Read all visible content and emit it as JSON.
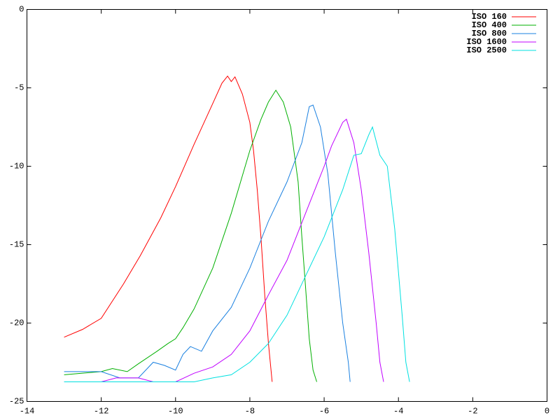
{
  "chart_data": {
    "type": "line",
    "xlim": [
      -14,
      0
    ],
    "xticks": [
      -14,
      -12,
      -10,
      -8,
      -6,
      -4,
      -2,
      0
    ],
    "ylim": [
      -25,
      0
    ],
    "yticks": [
      -25,
      -20,
      -15,
      -10,
      -5,
      0
    ],
    "grid": false,
    "legend": "top-right",
    "series": [
      {
        "name": "ISO 160",
        "color": "#ff0000",
        "x": [
          -13,
          -12.5,
          -12,
          -11.4,
          -10.95,
          -10.4,
          -10,
          -9.5,
          -9,
          -8.75,
          -8.6,
          -8.5,
          -8.4,
          -8.2,
          -8,
          -7.9,
          -7.8,
          -7.7,
          -7.6,
          -7.5,
          -7.4
        ],
        "values": [
          -20.9,
          -20.4,
          -19.7,
          -17.5,
          -15.7,
          -13.3,
          -11.3,
          -8.6,
          -6.0,
          -4.7,
          -4.25,
          -4.6,
          -4.3,
          -5.4,
          -7.2,
          -9.0,
          -11.5,
          -14.6,
          -18.2,
          -21.3,
          -23.75
        ]
      },
      {
        "name": "ISO 400",
        "color": "#00b000",
        "x": [
          -13,
          -12,
          -11.7,
          -11.3,
          -11,
          -10.5,
          -10.2,
          -10,
          -9.8,
          -9.5,
          -9,
          -8.5,
          -8,
          -7.7,
          -7.5,
          -7.3,
          -7.1,
          -6.9,
          -6.7,
          -6.6,
          -6.5,
          -6.4,
          -6.3,
          -6.2
        ],
        "values": [
          -23.3,
          -23.1,
          -22.9,
          -23.1,
          -22.6,
          -21.8,
          -21.3,
          -21.0,
          -20.3,
          -19.1,
          -16.5,
          -13.0,
          -9.0,
          -7.0,
          -5.9,
          -5.15,
          -5.9,
          -7.5,
          -11.0,
          -14.5,
          -17.7,
          -21.0,
          -23.0,
          -23.75
        ]
      },
      {
        "name": "ISO 800",
        "color": "#1a80e0",
        "x": [
          -13,
          -12,
          -11.5,
          -11,
          -10.6,
          -10.3,
          -10,
          -9.8,
          -9.6,
          -9.3,
          -9,
          -8.5,
          -8,
          -7.5,
          -7,
          -6.6,
          -6.4,
          -6.3,
          -6.1,
          -5.9,
          -5.7,
          -5.5,
          -5.35,
          -5.3
        ],
        "values": [
          -23.1,
          -23.1,
          -23.5,
          -23.5,
          -22.5,
          -22.7,
          -23.0,
          -22.0,
          -21.5,
          -21.8,
          -20.5,
          -19.0,
          -16.5,
          -13.5,
          -11.0,
          -8.5,
          -6.2,
          -6.1,
          -7.5,
          -10.5,
          -15.5,
          -20.0,
          -22.5,
          -23.75
        ]
      },
      {
        "name": "ISO 1600",
        "color": "#c000ff",
        "x": [
          -13,
          -12,
          -11.6,
          -11,
          -10.6,
          -10,
          -9.5,
          -9,
          -8.5,
          -8,
          -7.5,
          -7,
          -6.5,
          -6,
          -5.8,
          -5.5,
          -5.4,
          -5.2,
          -5,
          -4.8,
          -4.6,
          -4.5,
          -4.4
        ],
        "values": [
          -23.75,
          -23.75,
          -23.5,
          -23.5,
          -23.75,
          -23.75,
          -23.2,
          -22.8,
          -22.0,
          -20.5,
          -18.2,
          -16.0,
          -13.0,
          -10.0,
          -8.7,
          -7.2,
          -7.0,
          -8.5,
          -11.5,
          -15.5,
          -20.0,
          -22.5,
          -23.75
        ]
      },
      {
        "name": "ISO 2500",
        "color": "#00e0e0",
        "x": [
          -13,
          -12,
          -11,
          -10,
          -9.5,
          -9,
          -8.5,
          -8,
          -7.5,
          -7,
          -6.5,
          -6,
          -5.5,
          -5.2,
          -5,
          -4.8,
          -4.7,
          -4.5,
          -4.3,
          -4.1,
          -3.9,
          -3.8,
          -3.7
        ],
        "values": [
          -23.75,
          -23.75,
          -23.75,
          -23.75,
          -23.75,
          -23.5,
          -23.3,
          -22.5,
          -21.3,
          -19.5,
          -17.0,
          -14.5,
          -11.5,
          -9.3,
          -9.2,
          -8.0,
          -7.5,
          -9.3,
          -10.0,
          -14.0,
          -19.5,
          -22.5,
          -23.75
        ]
      }
    ]
  }
}
